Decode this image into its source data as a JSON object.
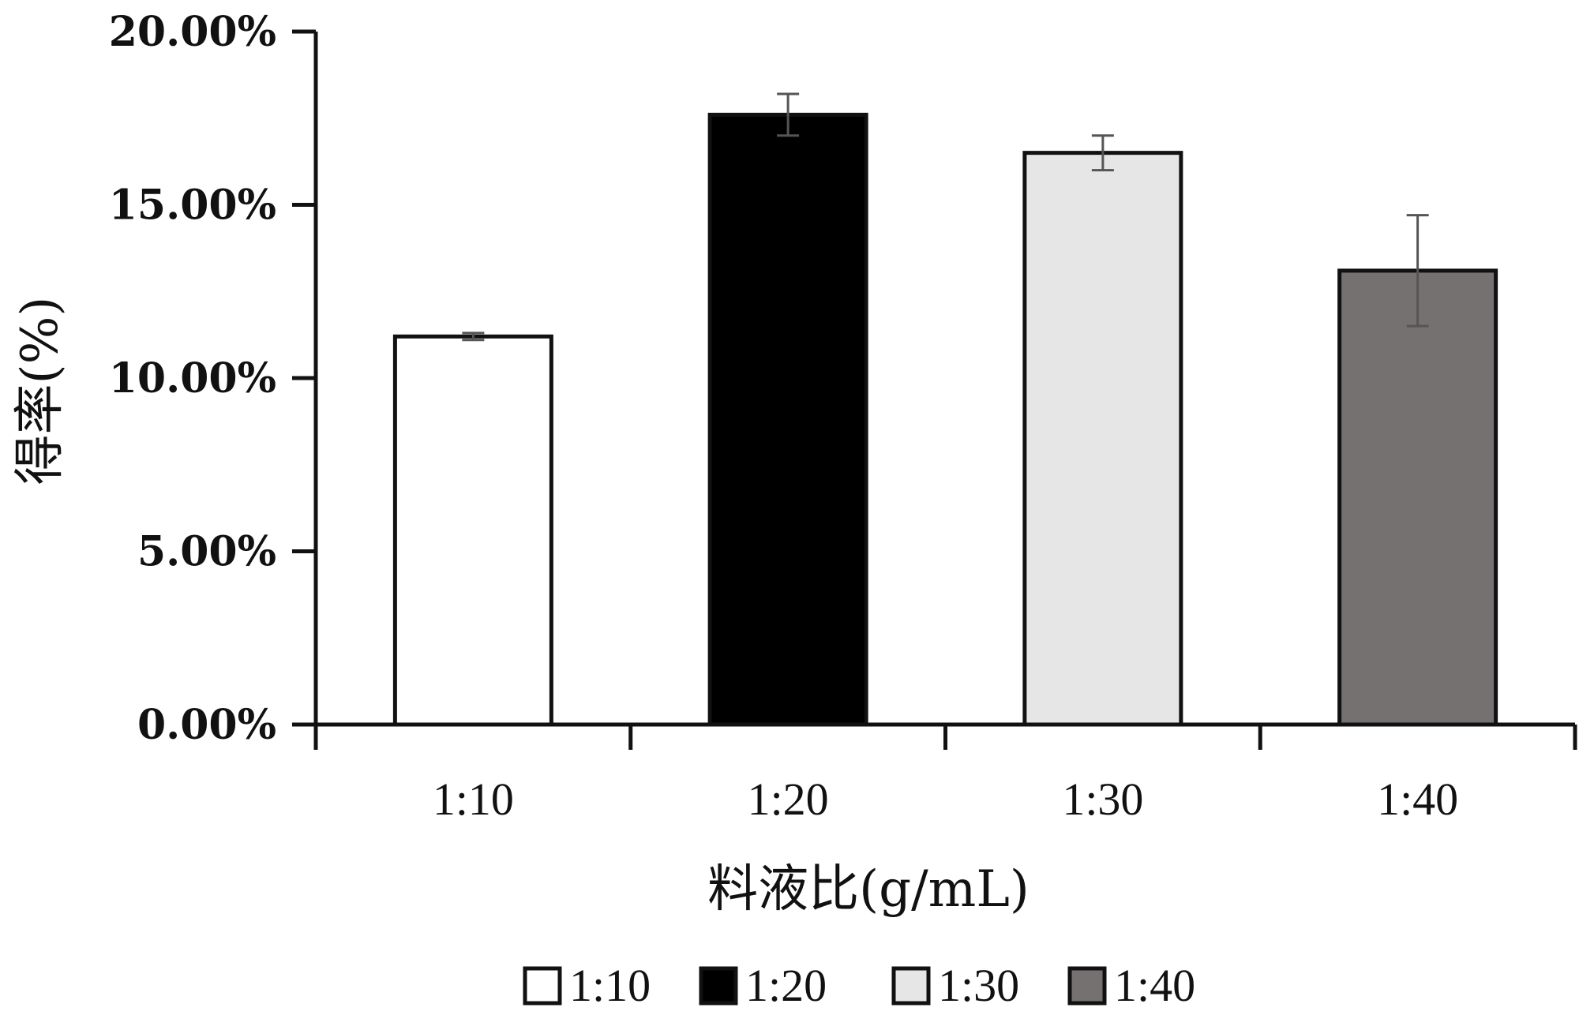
{
  "chart_data": {
    "type": "bar",
    "categories": [
      "1:10",
      "1:20",
      "1:30",
      "1:40"
    ],
    "values": [
      11.2,
      17.6,
      16.5,
      13.1
    ],
    "errors": [
      0.1,
      0.6,
      0.5,
      1.6
    ],
    "bar_colors": [
      "#ffffff",
      "#000000",
      "#e6e6e6",
      "#767171"
    ],
    "xlabel": "料液比(g/mL)",
    "ylabel": "得率(%)",
    "ylim": [
      0,
      20
    ],
    "y_ticks": [
      0,
      5,
      10,
      15,
      20
    ],
    "y_tick_labels": [
      "0.00%",
      "5.00%",
      "10.00%",
      "15.00%",
      "20.00%"
    ],
    "grid": false,
    "legend": {
      "placement": "bottom-center",
      "entries": [
        "1:10",
        "1:20",
        "1:30",
        "1:40"
      ]
    }
  }
}
